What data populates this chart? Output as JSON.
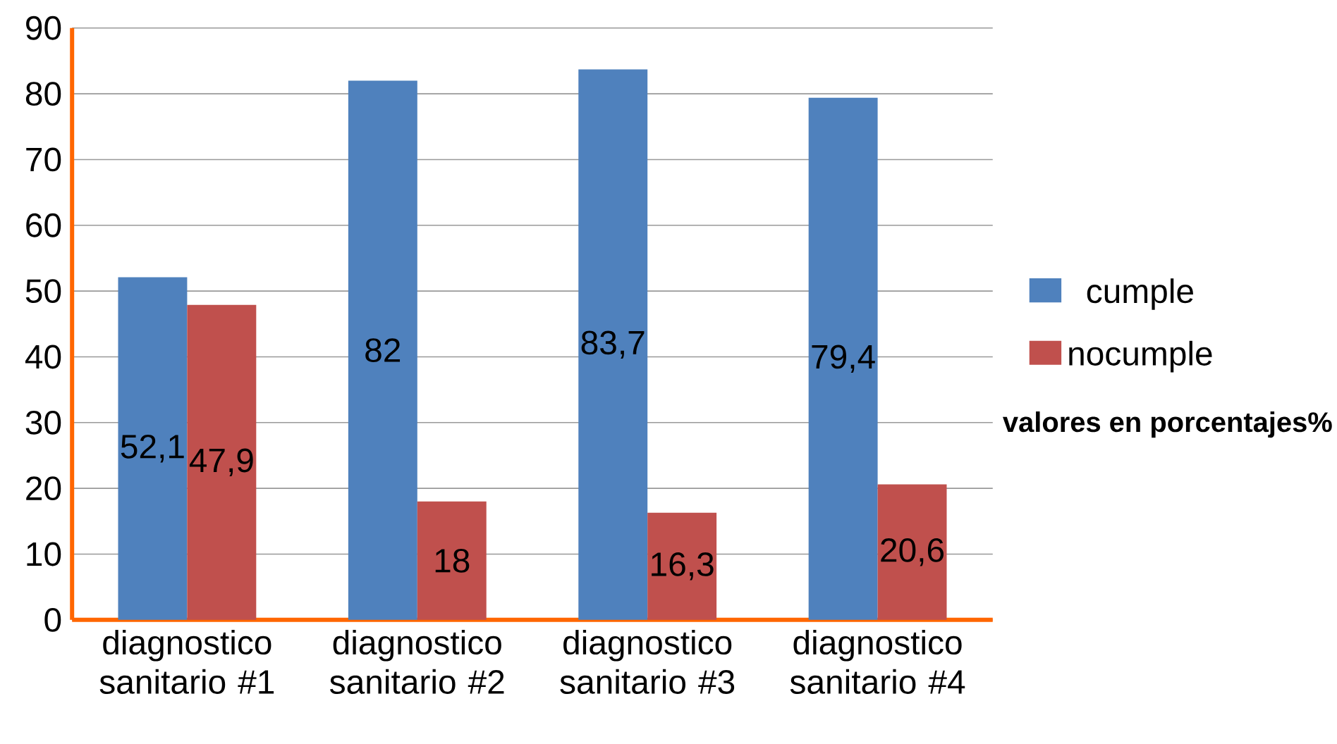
{
  "chart_data": {
    "type": "bar",
    "categories": [
      "diagnostico sanitario #1",
      "diagnostico sanitario #2",
      "diagnostico sanitario #3",
      "diagnostico sanitario #4"
    ],
    "series": [
      {
        "name": "cumple",
        "color": "#4f81bd",
        "values": [
          52.1,
          82,
          83.7,
          79.4
        ],
        "value_labels": [
          "52,1",
          "82",
          "83,7",
          "79,4"
        ]
      },
      {
        "name": "nocumple",
        "color": "#c0504d",
        "values": [
          47.9,
          18,
          16.3,
          20.6
        ],
        "value_labels": [
          "47,9",
          "18",
          "16,3",
          "20,6"
        ]
      }
    ],
    "ylim": [
      0,
      90
    ],
    "yticks": [
      0,
      10,
      20,
      30,
      40,
      50,
      60,
      70,
      80,
      90
    ],
    "grid": "y",
    "legend": "right",
    "annotations": [
      "valores en porcentajes%"
    ]
  }
}
